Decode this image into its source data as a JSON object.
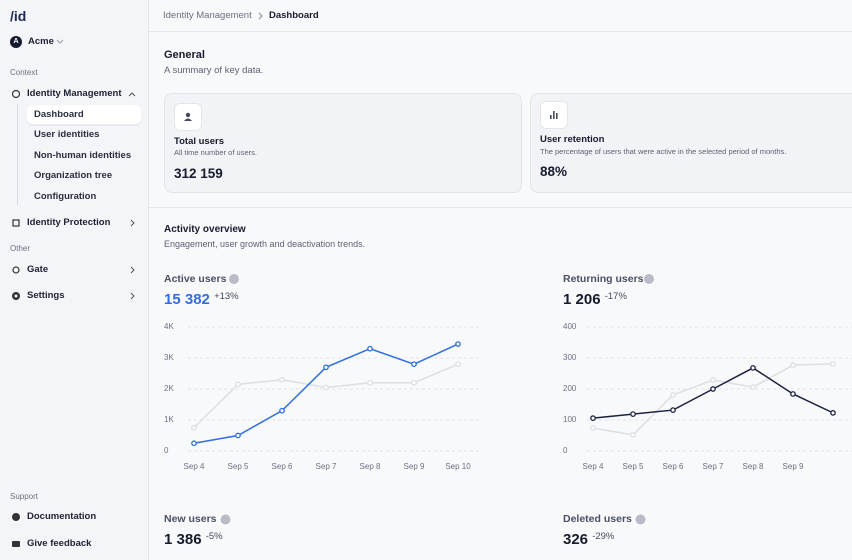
{
  "sidebar": {
    "logo": "/id",
    "org_initial": "A",
    "org": "Acme",
    "sections": [
      {
        "label": "Context",
        "items": [
          "Identity Management",
          "Identity Protection"
        ]
      },
      {
        "label": "Other",
        "items": [
          "Gate",
          "Settings"
        ]
      },
      {
        "label": "Support",
        "items": [
          "Documentation",
          "Give feedback"
        ]
      }
    ],
    "subitems": [
      "Dashboard",
      "User identities",
      "Non-human identities",
      "Organization tree",
      "Configuration"
    ]
  },
  "breadcrumb": [
    "Identity Management",
    "Dashboard"
  ],
  "general": {
    "title": "General",
    "subtitle": "A summary of key data.",
    "cards": [
      {
        "title": "Total users",
        "description": "All time number of users.",
        "value": "312 159"
      },
      {
        "title": "User retention",
        "description": "The percentage of users that were active in the selected period of months.",
        "value": "88%"
      }
    ]
  },
  "activity": {
    "title": "Activity overview",
    "subtitle": "Engagement, user growth and deactivation trends.",
    "stats": [
      {
        "title": "New users",
        "value": "1 386",
        "change": "-5%"
      },
      {
        "title": "Deleted users",
        "value": "326",
        "change": "-29%"
      }
    ]
  },
  "chart_data": [
    {
      "type": "line",
      "title": "Active users",
      "headline": "15 382",
      "change": "+13%",
      "headline_color": "#2f6fdf",
      "categories": [
        "Sep 4",
        "Sep 5",
        "Sep 6",
        "Sep 7",
        "Sep 8",
        "Sep 9",
        "Sep 10"
      ],
      "series": [
        {
          "color": "#dcdee3",
          "values": [
            750,
            2150,
            2300,
            2050,
            2200,
            2200,
            2800
          ]
        },
        {
          "color": "#2f6fdf",
          "values": [
            250,
            500,
            1300,
            2700,
            3300,
            2800,
            3450
          ]
        }
      ],
      "ylim": [
        0,
        4000
      ],
      "yticks": [
        0,
        {
          "value": 1000,
          "label": "1K"
        },
        {
          "value": 2000,
          "label": "2K"
        },
        {
          "value": 3000,
          "label": "3K"
        },
        {
          "value": 4000,
          "label": "4K"
        }
      ],
      "grid": true
    },
    {
      "type": "line",
      "title": "Returning users",
      "headline": "1 206",
      "change": "-17%",
      "headline_color": "#161b2e",
      "categories": [
        "Sep 4",
        "Sep 5",
        "Sep 6",
        "Sep 7",
        "Sep 8",
        "Sep 9",
        null
      ],
      "series": [
        {
          "color": "#dcdee3",
          "values": [
            74,
            52,
            181,
            229,
            206,
            277,
            281
          ]
        },
        {
          "color": "#1b2240",
          "values": [
            106,
            119,
            132,
            200,
            268,
            184,
            123
          ]
        }
      ],
      "ylim": [
        0,
        400
      ],
      "yticks": [
        0,
        100,
        200,
        300,
        400
      ],
      "grid": true
    }
  ]
}
